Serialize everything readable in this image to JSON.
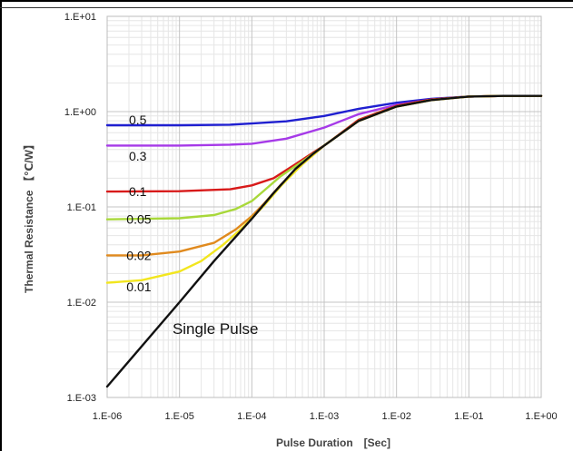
{
  "chart_data": {
    "type": "line",
    "title": "",
    "xlabel": "Pulse Duration　[Sec]",
    "ylabel": "Thermal Resistance 【℃/W】",
    "x_scale": "log",
    "y_scale": "log",
    "xlim": [
      1e-06,
      1
    ],
    "ylim": [
      0.001,
      10
    ],
    "grid": true,
    "x_tick_labels": [
      "1.E-06",
      "1.E-05",
      "1.E-04",
      "1.E-03",
      "1.E-02",
      "1.E-01",
      "1.E+00"
    ],
    "y_tick_labels": [
      "1.E-03",
      "1.E-02",
      "1.E-01",
      "1.E+00",
      "1.E+01"
    ],
    "series": [
      {
        "name": "0.5",
        "color": "#1f1fd0",
        "x": [
          1e-06,
          1e-05,
          5e-05,
          0.0001,
          0.0003,
          0.001,
          0.003,
          0.01,
          0.03,
          0.1,
          0.3,
          1
        ],
        "y": [
          0.72,
          0.72,
          0.73,
          0.75,
          0.79,
          0.9,
          1.07,
          1.24,
          1.36,
          1.44,
          1.46,
          1.46
        ]
      },
      {
        "name": "0.3",
        "color": "#a63ae8",
        "x": [
          1e-06,
          1e-05,
          5e-05,
          0.0001,
          0.0003,
          0.001,
          0.003,
          0.01,
          0.03,
          0.1,
          0.3,
          1
        ],
        "y": [
          0.44,
          0.44,
          0.45,
          0.46,
          0.52,
          0.68,
          0.94,
          1.18,
          1.34,
          1.44,
          1.46,
          1.46
        ]
      },
      {
        "name": "0.1",
        "color": "#d81a1a",
        "x": [
          1e-06,
          1e-05,
          5e-05,
          0.0001,
          0.0002,
          0.0004,
          0.0007,
          0.001,
          0.003,
          0.01,
          0.03,
          0.1,
          0.3,
          1
        ],
        "y": [
          0.145,
          0.146,
          0.153,
          0.168,
          0.2,
          0.28,
          0.37,
          0.44,
          0.82,
          1.15,
          1.34,
          1.44,
          1.46,
          1.46
        ]
      },
      {
        "name": "0.05",
        "color": "#a8d83a",
        "x": [
          1e-06,
          1e-05,
          3e-05,
          6e-05,
          0.0001,
          0.00015,
          0.00025,
          0.0005,
          0.001,
          0.003,
          0.01,
          0.03,
          0.1,
          0.3,
          1
        ],
        "y": [
          0.074,
          0.076,
          0.082,
          0.095,
          0.115,
          0.15,
          0.21,
          0.3,
          0.44,
          0.8,
          1.13,
          1.32,
          1.44,
          1.46,
          1.46
        ]
      },
      {
        "name": "0.02",
        "color": "#e08a1e",
        "x": [
          1e-06,
          3e-06,
          1e-05,
          3e-05,
          6e-05,
          0.0001,
          0.00015,
          0.00025,
          0.0005,
          0.001,
          0.003,
          0.01,
          0.03,
          0.1,
          0.3,
          1
        ],
        "y": [
          0.031,
          0.031,
          0.034,
          0.042,
          0.058,
          0.08,
          0.11,
          0.17,
          0.28,
          0.44,
          0.8,
          1.13,
          1.32,
          1.44,
          1.46,
          1.46
        ]
      },
      {
        "name": "0.01",
        "color": "#f2e61e",
        "x": [
          1e-06,
          3e-06,
          1e-05,
          2e-05,
          4e-05,
          7e-05,
          0.0001,
          0.00015,
          0.00025,
          0.0005,
          0.001,
          0.003,
          0.01,
          0.03,
          0.1,
          0.3,
          1
        ],
        "y": [
          0.016,
          0.017,
          0.021,
          0.027,
          0.04,
          0.058,
          0.076,
          0.105,
          0.165,
          0.28,
          0.44,
          0.8,
          1.13,
          1.32,
          1.44,
          1.46,
          1.46
        ]
      },
      {
        "name": "Single Pulse",
        "color": "#111111",
        "x": [
          1e-06,
          1e-05,
          3e-05,
          0.0001,
          0.0002,
          0.0004,
          0.0007,
          0.001,
          0.003,
          0.01,
          0.03,
          0.1,
          0.3,
          1
        ],
        "y": [
          0.0013,
          0.01,
          0.027,
          0.075,
          0.14,
          0.25,
          0.36,
          0.44,
          0.8,
          1.13,
          1.32,
          1.44,
          1.46,
          1.46
        ]
      }
    ],
    "labels": [
      {
        "text": "0.5",
        "x": 2e-06,
        "y": 0.82
      },
      {
        "text": "0.3",
        "x": 2e-06,
        "y": 0.34
      },
      {
        "text": "0.1",
        "x": 2e-06,
        "y": 0.145
      },
      {
        "text": "0.05",
        "x": 1.85e-06,
        "y": 0.074
      },
      {
        "text": "0.02",
        "x": 1.85e-06,
        "y": 0.031
      },
      {
        "text": "0.01",
        "x": 1.85e-06,
        "y": 0.0145
      },
      {
        "text": "Single Pulse",
        "x": 8e-06,
        "y": 0.0052
      }
    ]
  }
}
